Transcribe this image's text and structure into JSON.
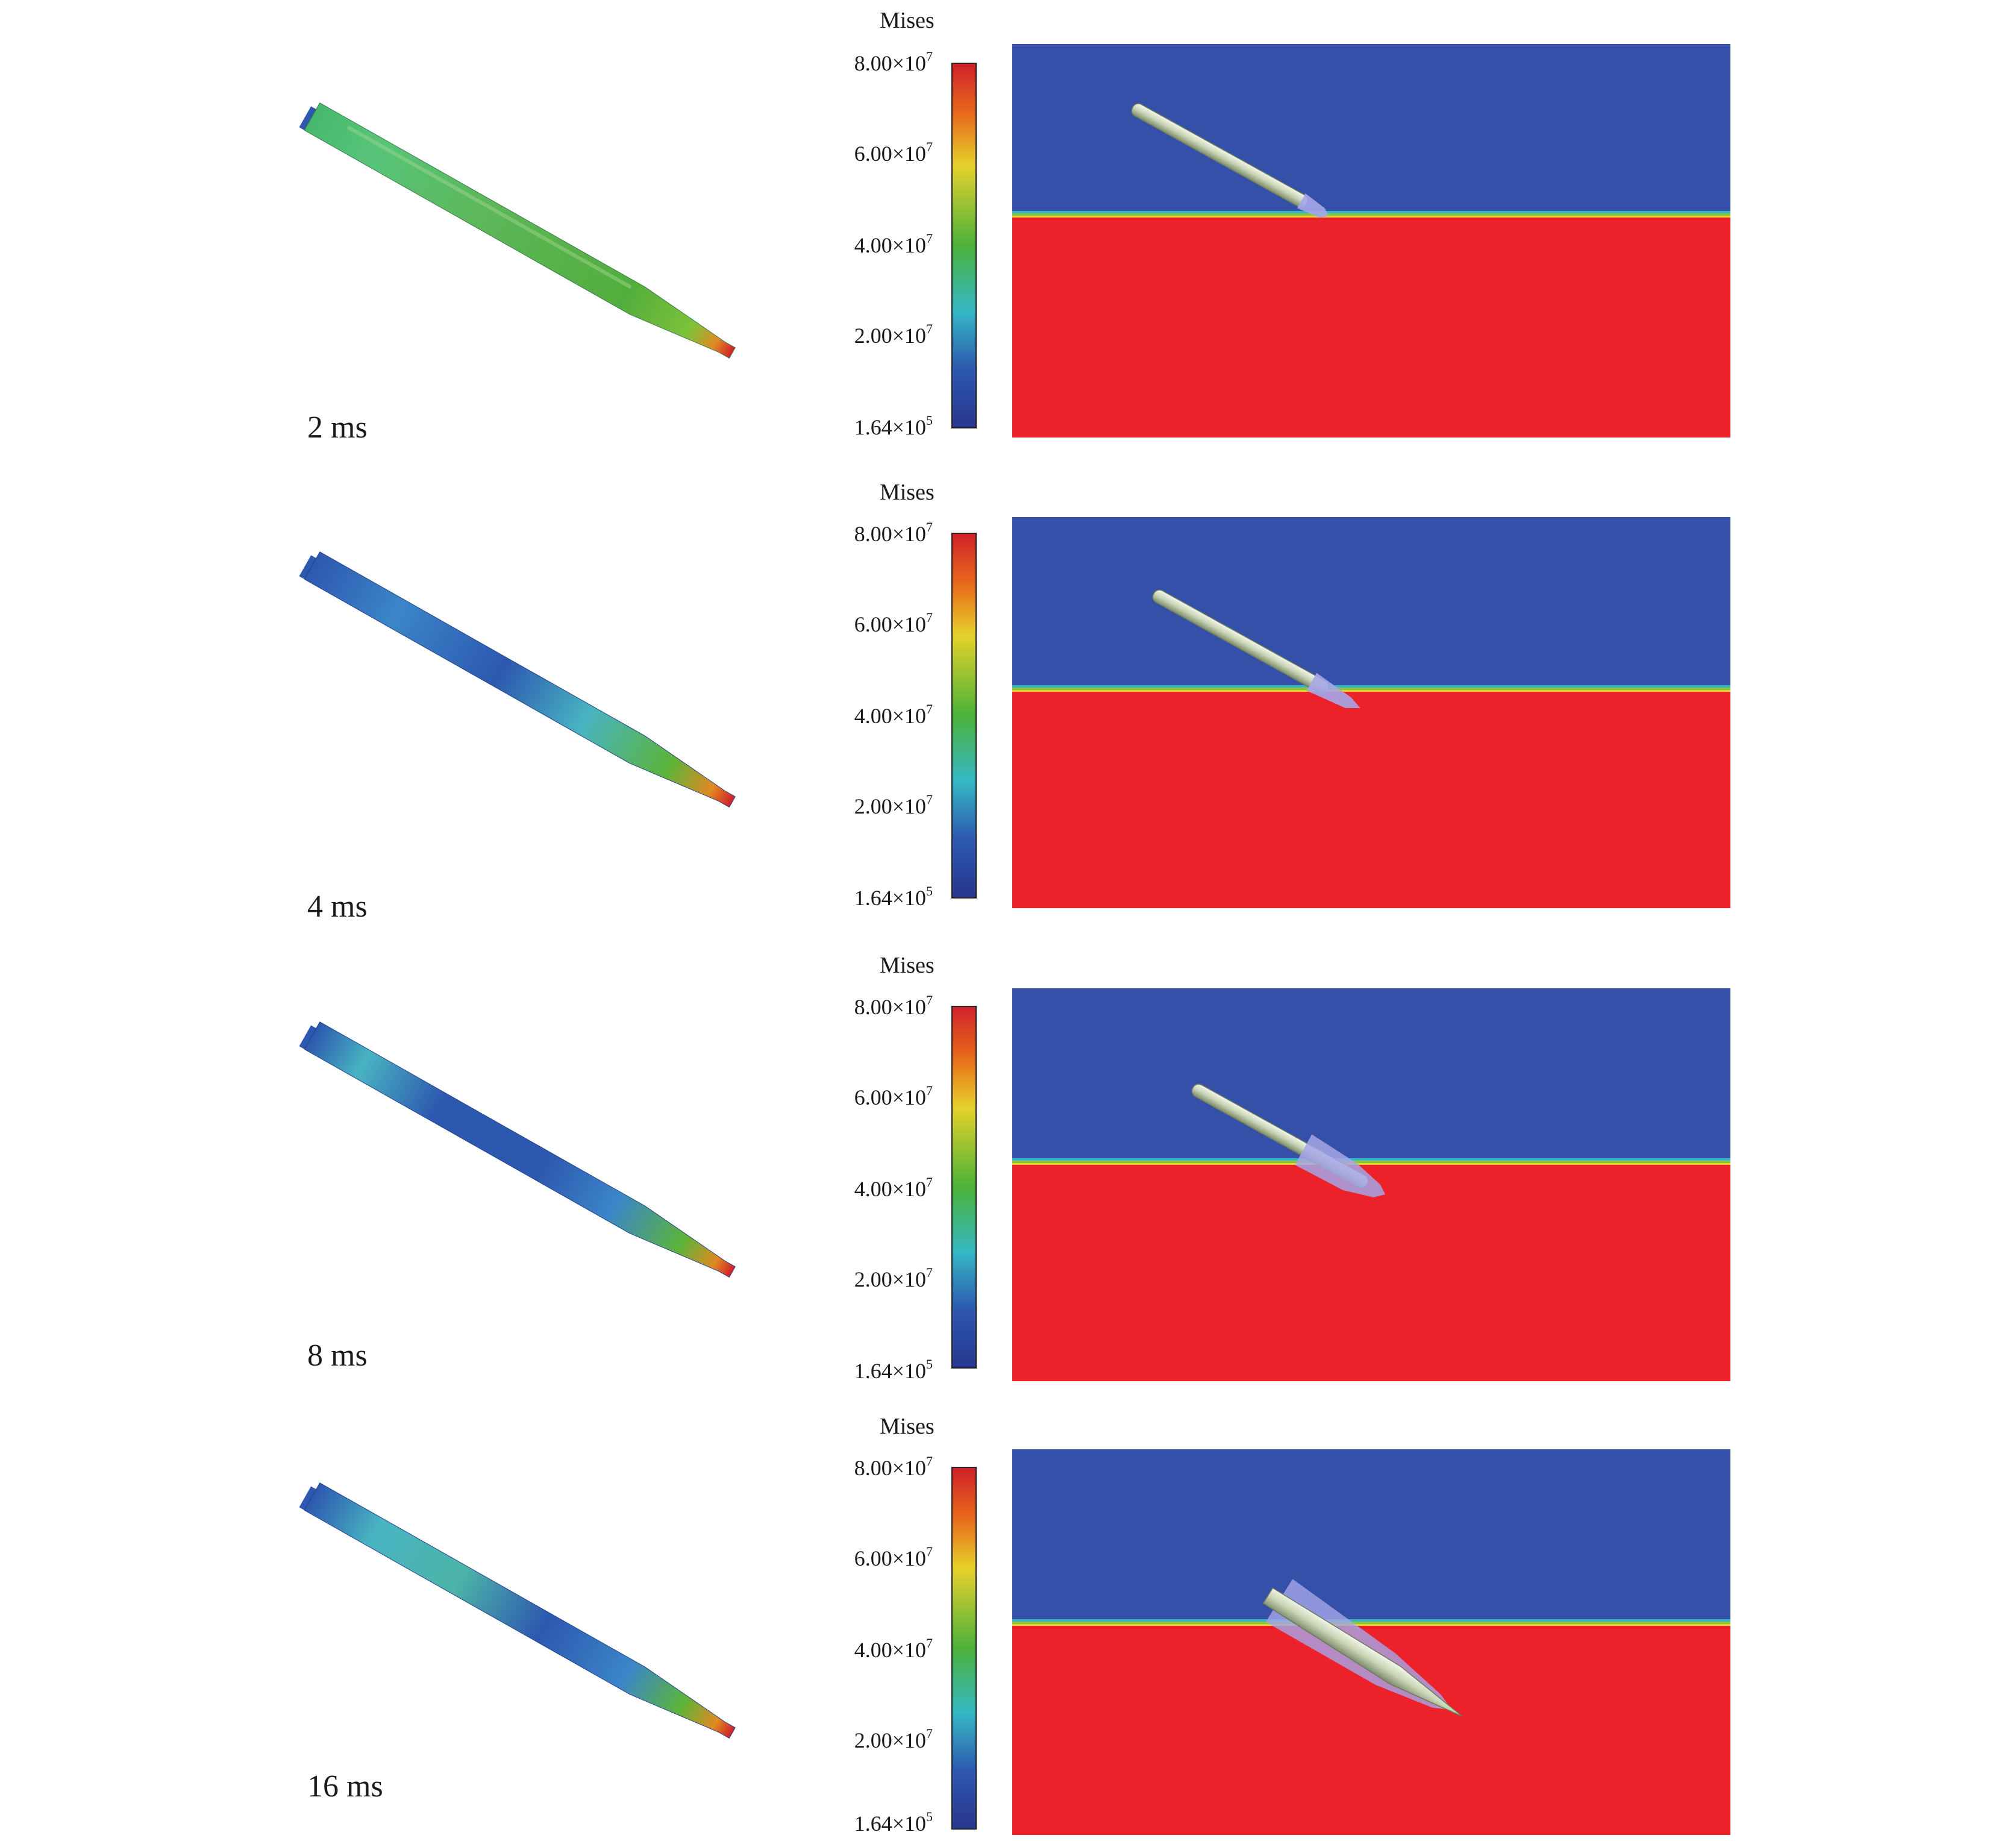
{
  "colorbar": {
    "title": "Mises",
    "ticks": [
      {
        "mantissa": "8.00×10",
        "exp": "7"
      },
      {
        "mantissa": "6.00×10",
        "exp": "7"
      },
      {
        "mantissa": "4.00×10",
        "exp": "7"
      },
      {
        "mantissa": "2.00×10",
        "exp": "7"
      },
      {
        "mantissa": "1.64×10",
        "exp": "5"
      }
    ],
    "colors": [
      "#d0202a",
      "#e86a1c",
      "#e6d12a",
      "#4cb23a",
      "#35b8c4",
      "#2d58b0",
      "#27358e"
    ]
  },
  "frames": [
    {
      "time": "2 ms"
    },
    {
      "time": "4 ms"
    },
    {
      "time": "8 ms"
    },
    {
      "time": "16 ms"
    }
  ],
  "colors": {
    "air": "#3450a8",
    "water": "#ec2129",
    "interface_green": "#88c43c",
    "interface_yellow": "#e6d12a",
    "interface_cyan": "#35b8c4",
    "body_low": "#2d58b0",
    "body_mid": "#4cb23a",
    "body_high": "#d0202a"
  }
}
